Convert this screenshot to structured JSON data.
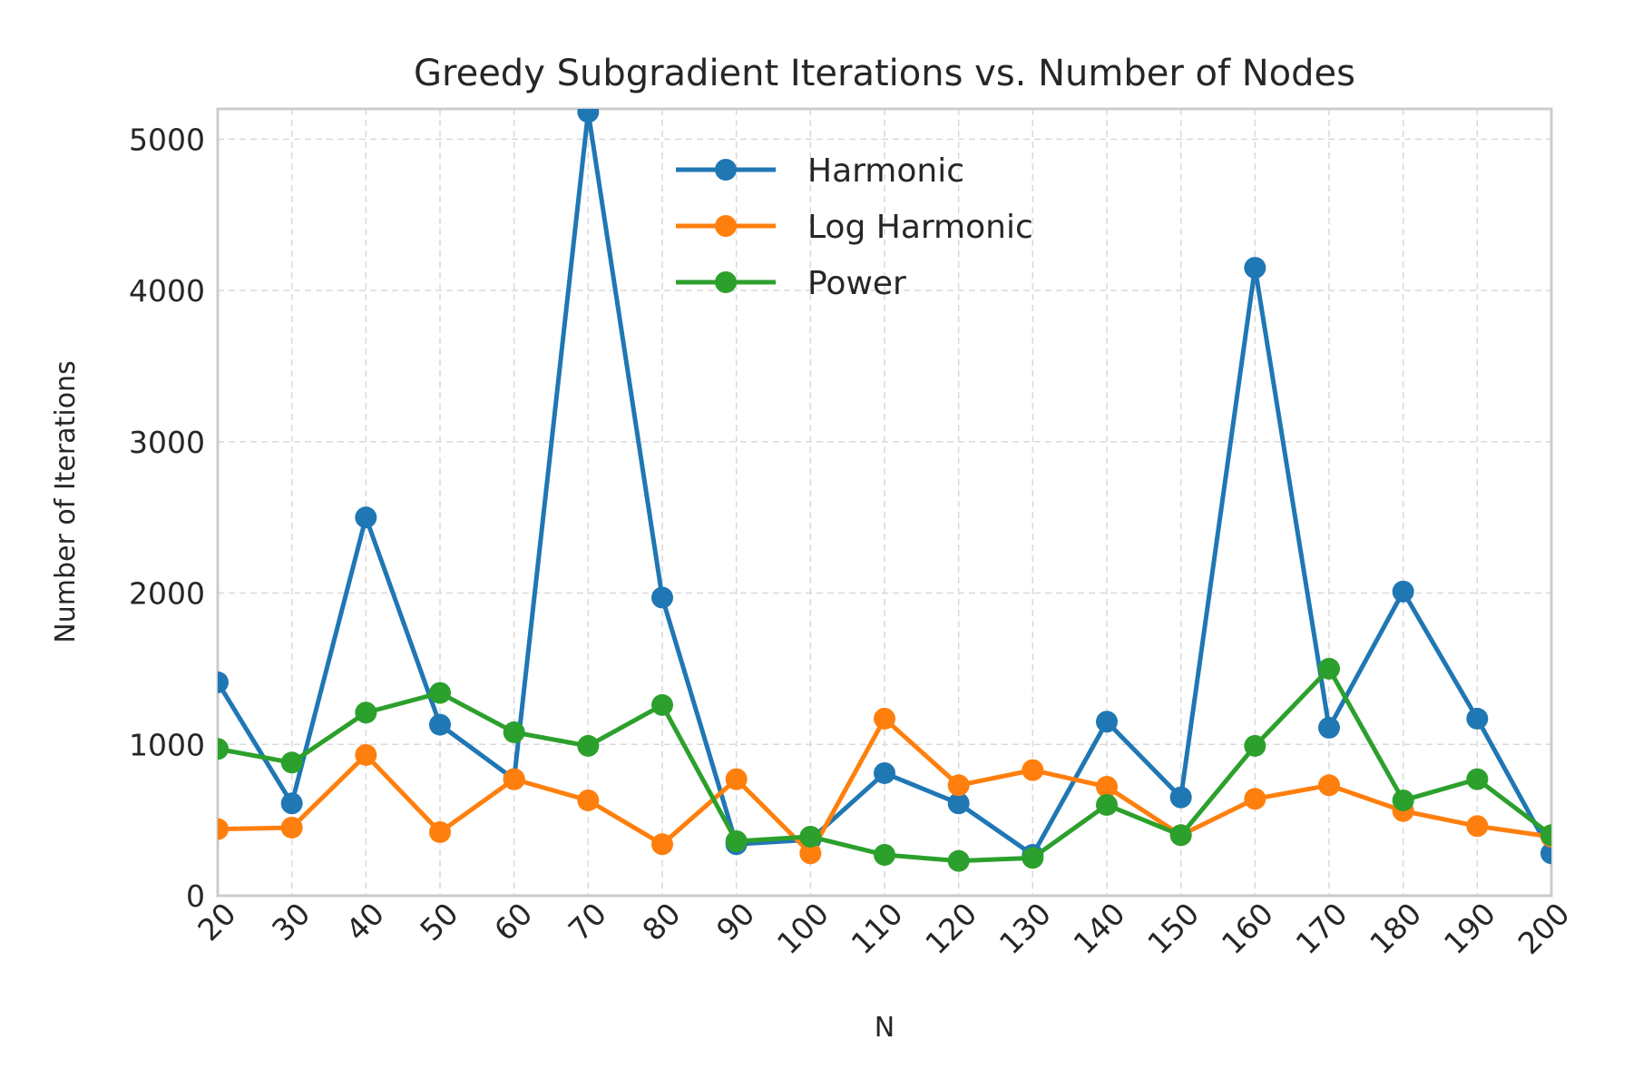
{
  "chart_data": {
    "type": "line",
    "title": "Greedy Subgradient Iterations vs. Number of Nodes",
    "xlabel": "N",
    "ylabel": "Number of Iterations",
    "x": [
      20,
      30,
      40,
      50,
      60,
      70,
      80,
      90,
      100,
      110,
      120,
      130,
      140,
      150,
      160,
      170,
      180,
      190,
      200
    ],
    "xlim": [
      20,
      200
    ],
    "ylim": [
      0,
      5200
    ],
    "yticks": [
      0,
      1000,
      2000,
      3000,
      4000,
      5000
    ],
    "grid": true,
    "legend_position": "upper-center",
    "series": [
      {
        "name": "Harmonic",
        "color": "#1f77b4",
        "values": [
          1410,
          610,
          2500,
          1130,
          770,
          5180,
          1970,
          340,
          370,
          810,
          610,
          270,
          1150,
          650,
          4150,
          1110,
          2010,
          1170,
          280
        ]
      },
      {
        "name": "Log Harmonic",
        "color": "#ff7f0e",
        "values": [
          440,
          450,
          930,
          420,
          770,
          630,
          340,
          770,
          280,
          1170,
          730,
          830,
          720,
          400,
          640,
          730,
          560,
          460,
          390
        ]
      },
      {
        "name": "Power",
        "color": "#2ca02c",
        "values": [
          970,
          880,
          1210,
          1340,
          1080,
          990,
          1260,
          360,
          390,
          270,
          230,
          250,
          600,
          400,
          990,
          1500,
          630,
          770,
          400
        ]
      }
    ]
  }
}
